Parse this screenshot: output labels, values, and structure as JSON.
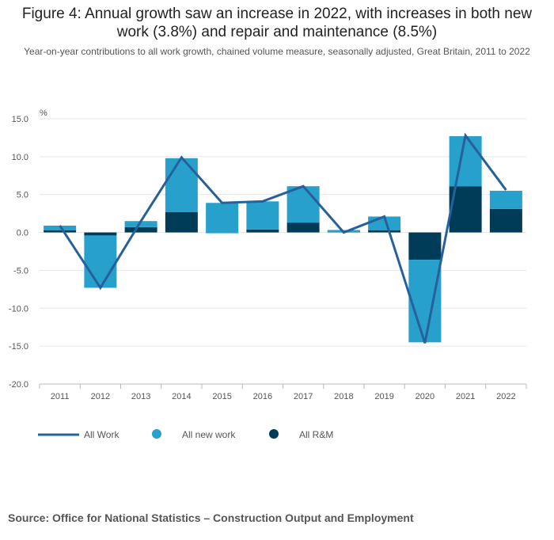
{
  "title": "Figure 4: Annual growth saw an increase in 2022, with increases in both new work (3.8%) and repair and maintenance (8.5%)",
  "subtitle": "Year-on-year contributions to all work growth, chained volume measure, seasonally adjusted, Great Britain, 2011 to 2022",
  "source": "Source: Office for National Statistics – Construction Output and Employment",
  "colors": {
    "all_work": "#27609a",
    "all_new_work": "#27a0cc",
    "all_rm": "#003c57",
    "grid": "#e6e6e6",
    "axis": "#bbbbbb"
  },
  "chart_data": {
    "type": "bar",
    "stacked": true,
    "ylabel": "%",
    "ylim": [
      -20,
      15
    ],
    "yticks": [
      "15.0",
      "10.0",
      "5.0",
      "0.0",
      "-5.0",
      "-10.0",
      "-15.0",
      "-20.0"
    ],
    "ytick_values": [
      15,
      10,
      5,
      0,
      -5,
      -10,
      -15,
      -20
    ],
    "grid": true,
    "legend_position": "bottom-left",
    "categories": [
      "2011",
      "2012",
      "2013",
      "2014",
      "2015",
      "2016",
      "2017",
      "2018",
      "2019",
      "2020",
      "2021",
      "2022"
    ],
    "series": [
      {
        "name": "All R&M",
        "type": "bar",
        "values": [
          0.3,
          -0.4,
          0.7,
          2.7,
          -0.1,
          0.4,
          1.3,
          0.3,
          0.3,
          -3.6,
          6.1,
          3.1
        ]
      },
      {
        "name": "All new work",
        "type": "bar",
        "values": [
          0.6,
          -6.9,
          0.8,
          7.1,
          4.0,
          3.7,
          4.8,
          -0.3,
          1.8,
          -10.9,
          6.6,
          2.4
        ]
      },
      {
        "name": "All Work",
        "type": "line",
        "values": [
          0.9,
          -7.3,
          1.5,
          9.9,
          3.9,
          4.1,
          6.1,
          0.0,
          2.1,
          -14.6,
          12.8,
          5.6
        ]
      }
    ]
  }
}
